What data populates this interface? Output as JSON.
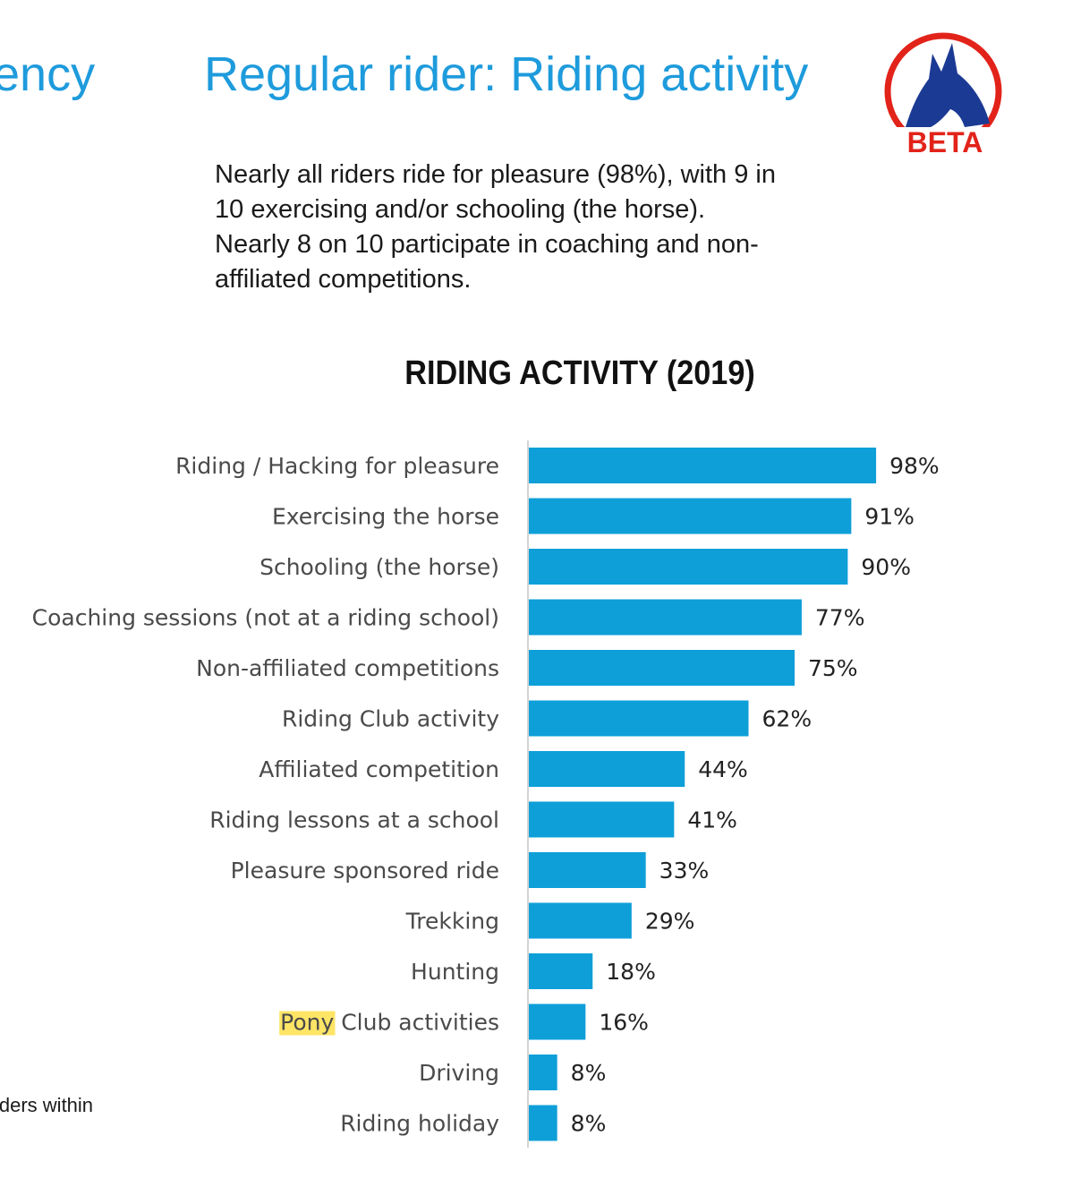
{
  "slide": {
    "cut_title": "ency",
    "title": "Regular rider: Riding activity",
    "summary_lines": [
      "Nearly all riders ride for pleasure (98%), with 9 in",
      "10 exercising and/or schooling (the horse).",
      "Nearly 8 on 10 participate in coaching and non-",
      "affiliated competitions."
    ],
    "logo_text": "BETA",
    "cut_footnote": "iders within"
  },
  "colors": {
    "title": "#1e9bdc",
    "bar": "#0e9fd8",
    "logo_red": "#e2231a",
    "logo_blue": "#1b3a94",
    "highlight": "#ffe566"
  },
  "chart_data": {
    "type": "bar",
    "orientation": "horizontal",
    "title": "RIDING ACTIVITY (2019)",
    "categories": [
      "Riding / Hacking for pleasure",
      "Exercising the horse",
      "Schooling (the horse)",
      "Coaching sessions (not at a riding school)",
      "Non-affiliated competitions",
      "Riding Club activity",
      "Affiliated competition",
      "Riding lessons at a school",
      "Pleasure sponsored ride",
      "Trekking",
      "Hunting",
      "Pony Club activities",
      "Driving",
      "Riding holiday"
    ],
    "values": [
      98,
      91,
      90,
      77,
      75,
      62,
      44,
      41,
      33,
      29,
      18,
      16,
      8,
      8
    ],
    "value_labels": [
      "98%",
      "91%",
      "90%",
      "77%",
      "75%",
      "62%",
      "44%",
      "41%",
      "33%",
      "29%",
      "18%",
      "16%",
      "8%",
      "8%"
    ],
    "highlighted_word": {
      "category_index": 11,
      "word": "Pony",
      "rest": " Club activities"
    },
    "xlim": [
      0,
      100
    ],
    "unit": "%",
    "grid": false,
    "legend": "none"
  }
}
